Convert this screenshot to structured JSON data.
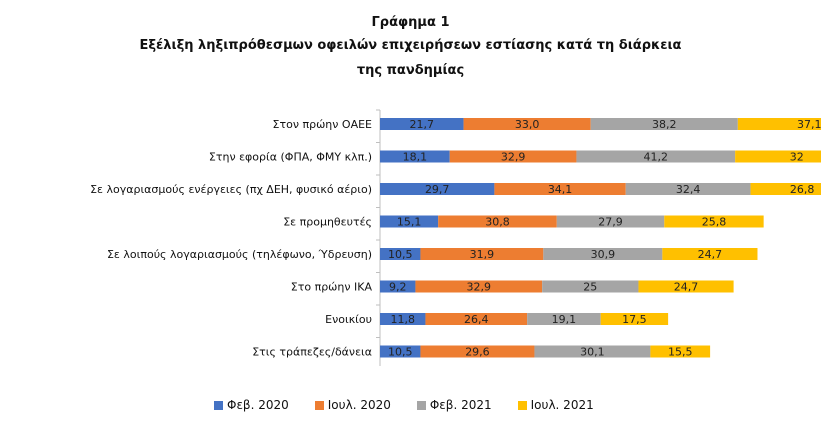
{
  "chart_data": {
    "type": "bar",
    "orientation": "horizontal",
    "stacked": true,
    "title": [
      "Γράφημα 1",
      "Εξέλιξη ληξιπρόθεσμων οφειλών επιχειρήσεων εστίασης κατά τη διάρκεια",
      "της πανδημίας"
    ],
    "categories": [
      "Στον πρώην ΟΑΕΕ",
      "Στην εφορία (ΦΠΑ, ΦΜΥ κλπ.)",
      "Σε λογαριασμούς ενέργειες (πχ ΔΕΗ, φυσικό αέριο)",
      "Σε προμηθευτές",
      "Σε λοιπούς λογαριασμούς (τηλέφωνο, Ύδρευση)",
      "Στο πρώην ΙΚΑ",
      "Ενοικίου",
      "Στις τράπεζες/δάνεια"
    ],
    "series": [
      {
        "name": "Φεβ. 2020",
        "color": "#4472C4",
        "values": [
          21.7,
          18.1,
          29.7,
          15.1,
          10.5,
          9.2,
          11.8,
          10.5
        ]
      },
      {
        "name": "Ιουλ. 2020",
        "color": "#ED7D31",
        "values": [
          33.0,
          32.9,
          34.1,
          30.8,
          31.9,
          32.9,
          26.4,
          29.6
        ]
      },
      {
        "name": "Φεβ. 2021",
        "color": "#A5A5A5",
        "values": [
          38.2,
          41.2,
          32.4,
          27.9,
          30.9,
          25,
          19.1,
          30.1
        ]
      },
      {
        "name": "Ιουλ. 2021",
        "color": "#FFC000",
        "values": [
          37.1,
          32,
          26.8,
          25.8,
          24.7,
          24.7,
          17.5,
          15.5
        ]
      }
    ],
    "data_labels": [
      [
        "21,7",
        "33,0",
        "38,2",
        "37,1"
      ],
      [
        "18,1",
        "32,9",
        "41,2",
        "32"
      ],
      [
        "29,7",
        "34,1",
        "32,4",
        "26,8"
      ],
      [
        "15,1",
        "30,8",
        "27,9",
        "25,8"
      ],
      [
        "10,5",
        "31,9",
        "30,9",
        "24,7"
      ],
      [
        "9,2",
        "32,9",
        "25",
        "24,7"
      ],
      [
        "11,8",
        "26,4",
        "19,1",
        "17,5"
      ],
      [
        "10,5",
        "29,6",
        "30,1",
        "15,5"
      ]
    ],
    "xlim": [
      0,
      135
    ],
    "grid": false,
    "legend": "bottom"
  }
}
